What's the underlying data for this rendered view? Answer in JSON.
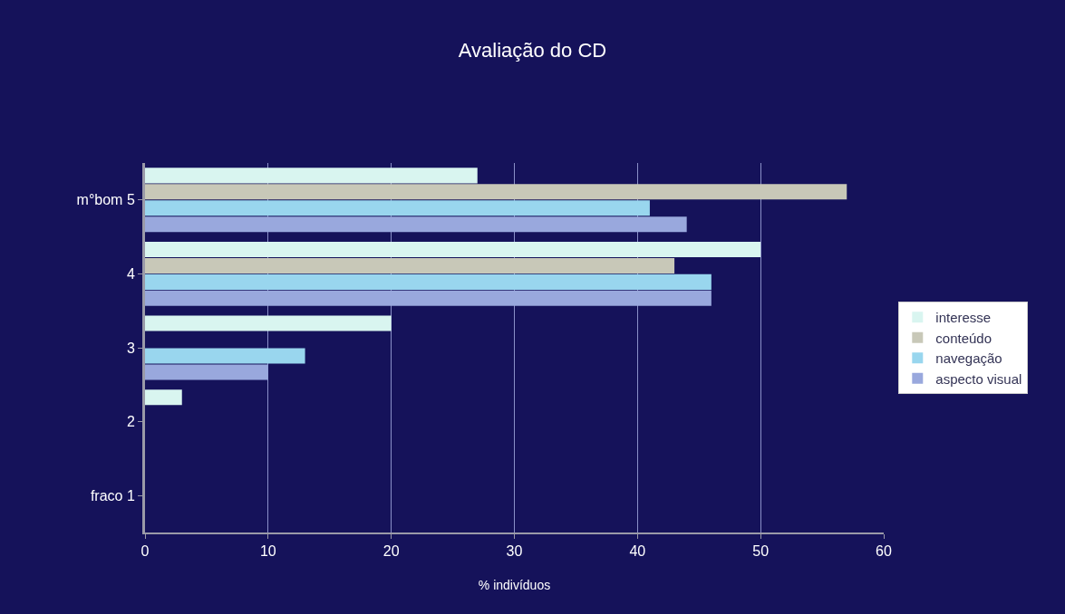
{
  "chart_data": {
    "type": "bar",
    "orientation": "horizontal",
    "title": "Avaliação do CD",
    "xlabel": "% indivíduos",
    "categories": [
      "m°bom 5",
      "4",
      "3",
      "2",
      "fraco 1"
    ],
    "series": [
      {
        "name": "interesse",
        "color": "#d9f5f0",
        "values": [
          27,
          50,
          20,
          3,
          0
        ]
      },
      {
        "name": "conteúdo",
        "color": "#c8c8b8",
        "values": [
          57,
          43,
          0,
          0,
          0
        ]
      },
      {
        "name": "navegação",
        "color": "#99d6ee",
        "values": [
          41,
          46,
          13,
          0,
          0
        ]
      },
      {
        "name": "aspecto visual",
        "color": "#99a8dd",
        "values": [
          44,
          46,
          10,
          0,
          0
        ]
      }
    ],
    "xlim": [
      0,
      60
    ],
    "xticks": [
      0,
      10,
      20,
      30,
      40,
      50,
      60
    ],
    "grid": "x",
    "legend": "right"
  }
}
